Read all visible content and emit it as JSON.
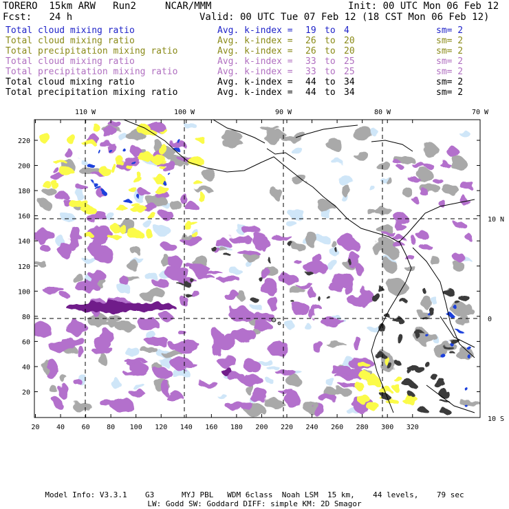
{
  "header": {
    "model": "TORERO",
    "resolution": "15km ARW",
    "run": "Run2",
    "org": "NCAR/MMM",
    "init": "Init: 00 UTC Mon 06 Feb 12",
    "fcst_label": "Fcst:",
    "fcst_value": "24 h",
    "valid": "Valid: 00 UTC Tue 07 Feb 12 (18 CST Mon 06 Feb 12)"
  },
  "legend": [
    {
      "field": "Total cloud mixing ratio",
      "kidx": "Avg. k-index =",
      "k1": "19",
      "to": "to",
      "k2": "4",
      "sm": "sm= 2",
      "color": "#1f23c8"
    },
    {
      "field": "Total cloud mixing ratio",
      "kidx": "Avg. k-index =",
      "k1": "26",
      "to": "to",
      "k2": "20",
      "sm": "sm= 2",
      "color": "#8a8a18"
    },
    {
      "field": "Total precipitation mixing ratio",
      "kidx": "Avg. k-index =",
      "k1": "26",
      "to": "to",
      "k2": "20",
      "sm": "sm= 2",
      "color": "#8a8a18"
    },
    {
      "field": "Total cloud mixing ratio",
      "kidx": "Avg. k-index =",
      "k1": "33",
      "to": "to",
      "k2": "25",
      "sm": "sm= 2",
      "color": "#b06fc0"
    },
    {
      "field": "Total precipitation mixing ratio",
      "kidx": "Avg. k-index =",
      "k1": "33",
      "to": "to",
      "k2": "25",
      "sm": "sm= 2",
      "color": "#b06fc0"
    },
    {
      "field": "Total cloud mixing ratio",
      "kidx": "Avg. k-index =",
      "k1": "44",
      "to": "to",
      "k2": "34",
      "sm": "sm= 2",
      "color": "#000000"
    },
    {
      "field": "Total precipitation mixing ratio",
      "kidx": "Avg. k-index =",
      "k1": "44",
      "to": "to",
      "k2": "34",
      "sm": "sm= 2",
      "color": "#000000"
    }
  ],
  "map": {
    "lon_labels": [
      "110 W",
      "100 W",
      "90 W",
      "80 W",
      "70 W"
    ],
    "lat_labels": [
      "10 N",
      "0",
      "10 S"
    ],
    "x_ticks": [
      "20",
      "40",
      "60",
      "80",
      "100",
      "120",
      "140",
      "160",
      "180",
      "200",
      "220",
      "240",
      "260",
      "280",
      "300",
      "320"
    ],
    "y_ticks": [
      "20",
      "40",
      "60",
      "80",
      "100",
      "120",
      "140",
      "160",
      "180",
      "200",
      "220"
    ],
    "colors": {
      "gray": "#a9a9a9",
      "dark": "#3a3a3a",
      "purple": "#b36fcc",
      "dark_purple": "#6f1a8a",
      "yellow": "#fbfb4a",
      "light_blue": "#cfe6f8",
      "blue": "#1a3fdc",
      "coast": "#000000"
    }
  },
  "footer": {
    "line1": "Model Info: V3.3.1    G3      MYJ PBL   WDM 6class  Noah LSM  15 km,    44 levels,    79 sec",
    "line2": "LW: Godd SW: Goddard DIFF: simple KM: 2D Smagor"
  }
}
